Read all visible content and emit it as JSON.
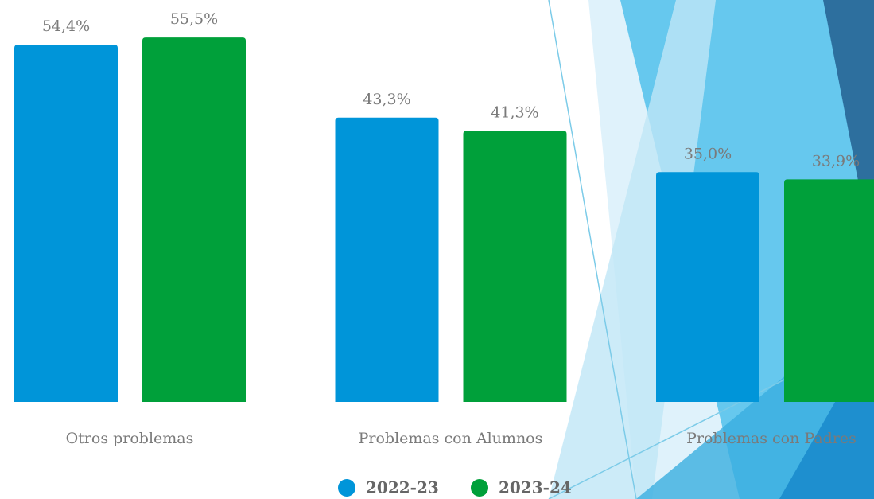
{
  "chart_data": {
    "type": "bar",
    "categories": [
      "Otros problemas",
      "Problemas con Alumnos",
      "Problemas con Padres"
    ],
    "series": [
      {
        "name": "2022-23",
        "color": "#0095d9",
        "values": [
          54.4,
          43.3,
          35.0
        ],
        "value_labels": [
          "54,4%",
          "43,3%",
          "35,0%"
        ]
      },
      {
        "name": "2023-24",
        "color": "#00a03a",
        "values": [
          55.5,
          41.3,
          33.9
        ],
        "value_labels": [
          "55,5%",
          "41,3%",
          "33,9%"
        ]
      }
    ]
  }
}
